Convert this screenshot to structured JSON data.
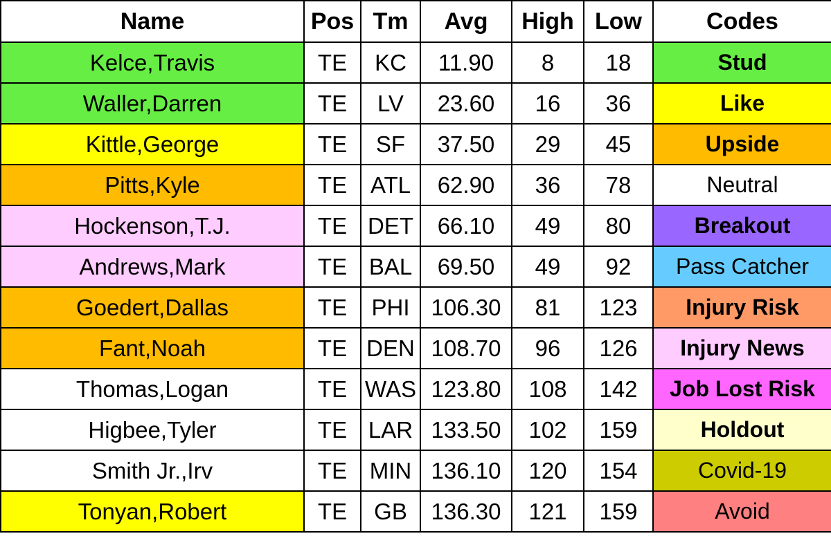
{
  "headers": [
    "Name",
    "Pos",
    "Tm",
    "Avg",
    "High",
    "Low",
    "Codes"
  ],
  "rows": [
    {
      "name": "Kelce,Travis",
      "name_bg": "#66ee44",
      "pos": "TE",
      "tm": "KC",
      "avg": "11.90",
      "high": "8",
      "low": "18",
      "code": "Stud",
      "code_bg": "#66ee44",
      "code_bold": true
    },
    {
      "name": "Waller,Darren",
      "name_bg": "#66ee44",
      "pos": "TE",
      "tm": "LV",
      "avg": "23.60",
      "high": "16",
      "low": "36",
      "code": "Like",
      "code_bg": "#ffff00",
      "code_bold": true
    },
    {
      "name": "Kittle,George",
      "name_bg": "#ffff00",
      "pos": "TE",
      "tm": "SF",
      "avg": "37.50",
      "high": "29",
      "low": "45",
      "code": "Upside",
      "code_bg": "#ffbb00",
      "code_bold": true
    },
    {
      "name": "Pitts,Kyle",
      "name_bg": "#ffbb00",
      "pos": "TE",
      "tm": "ATL",
      "avg": "62.90",
      "high": "36",
      "low": "78",
      "code": "Neutral",
      "code_bg": "#ffffff",
      "code_bold": false
    },
    {
      "name": "Hockenson,T.J.",
      "name_bg": "#ffccff",
      "pos": "TE",
      "tm": "DET",
      "avg": "66.10",
      "high": "49",
      "low": "80",
      "code": "Breakout",
      "code_bg": "#9966ff",
      "code_bold": true
    },
    {
      "name": "Andrews,Mark",
      "name_bg": "#ffccff",
      "pos": "TE",
      "tm": "BAL",
      "avg": "69.50",
      "high": "49",
      "low": "92",
      "code": "Pass Catcher",
      "code_bg": "#66ccff",
      "code_bold": false
    },
    {
      "name": "Goedert,Dallas",
      "name_bg": "#ffbb00",
      "pos": "TE",
      "tm": "PHI",
      "avg": "106.30",
      "high": "81",
      "low": "123",
      "code": "Injury Risk",
      "code_bg": "#ff9966",
      "code_bold": true
    },
    {
      "name": "Fant,Noah",
      "name_bg": "#ffbb00",
      "pos": "TE",
      "tm": "DEN",
      "avg": "108.70",
      "high": "96",
      "low": "126",
      "code": "Injury News",
      "code_bg": "#ffccff",
      "code_bold": true
    },
    {
      "name": "Thomas,Logan",
      "name_bg": "#ffffff",
      "pos": "TE",
      "tm": "WAS",
      "avg": "123.80",
      "high": "108",
      "low": "142",
      "code": "Job Lost Risk",
      "code_bg": "#ff66ff",
      "code_bold": true
    },
    {
      "name": "Higbee,Tyler",
      "name_bg": "#ffffff",
      "pos": "TE",
      "tm": "LAR",
      "avg": "133.50",
      "high": "102",
      "low": "159",
      "code": "Holdout",
      "code_bg": "#ffffcc",
      "code_bold": true
    },
    {
      "name": "Smith Jr.,Irv",
      "name_bg": "#ffffff",
      "pos": "TE",
      "tm": "MIN",
      "avg": "136.10",
      "high": "120",
      "low": "154",
      "code": "Covid-19",
      "code_bg": "#cccc00",
      "code_bold": false
    },
    {
      "name": "Tonyan,Robert",
      "name_bg": "#ffff00",
      "pos": "TE",
      "tm": "GB",
      "avg": "136.30",
      "high": "121",
      "low": "159",
      "code": "Avoid",
      "code_bg": "#ff8080",
      "code_bold": false
    }
  ]
}
